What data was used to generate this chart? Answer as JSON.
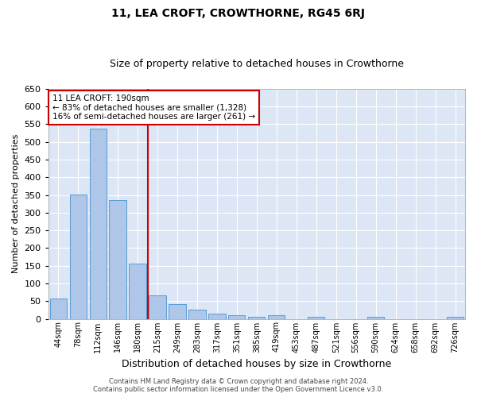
{
  "title": "11, LEA CROFT, CROWTHORNE, RG45 6RJ",
  "subtitle": "Size of property relative to detached houses in Crowthorne",
  "xlabel": "Distribution of detached houses by size in Crowthorne",
  "ylabel": "Number of detached properties",
  "categories": [
    "44sqm",
    "78sqm",
    "112sqm",
    "146sqm",
    "180sqm",
    "215sqm",
    "249sqm",
    "283sqm",
    "317sqm",
    "351sqm",
    "385sqm",
    "419sqm",
    "453sqm",
    "487sqm",
    "521sqm",
    "556sqm",
    "590sqm",
    "624sqm",
    "658sqm",
    "692sqm",
    "726sqm"
  ],
  "values": [
    57,
    352,
    538,
    336,
    155,
    67,
    42,
    25,
    15,
    10,
    5,
    10,
    0,
    5,
    0,
    0,
    5,
    0,
    0,
    0,
    5
  ],
  "bar_color": "#aec6e8",
  "bar_edge_color": "#5b9bd5",
  "background_color": "#dce6f5",
  "grid_color": "#ffffff",
  "property_label": "11 LEA CROFT: 190sqm",
  "annotation_line1": "← 83% of detached houses are smaller (1,328)",
  "annotation_line2": "16% of semi-detached houses are larger (261) →",
  "annotation_box_color": "#ffffff",
  "annotation_box_edge": "#cc0000",
  "footer_line1": "Contains HM Land Registry data © Crown copyright and database right 2024.",
  "footer_line2": "Contains public sector information licensed under the Open Government Licence v3.0.",
  "ylim": [
    0,
    650
  ],
  "yticks": [
    0,
    50,
    100,
    150,
    200,
    250,
    300,
    350,
    400,
    450,
    500,
    550,
    600,
    650
  ],
  "title_fontsize": 10,
  "subtitle_fontsize": 9,
  "xlabel_fontsize": 9,
  "ylabel_fontsize": 8,
  "redline_color": "#cc0000",
  "redline_x": 4.5,
  "fig_facecolor": "#ffffff"
}
